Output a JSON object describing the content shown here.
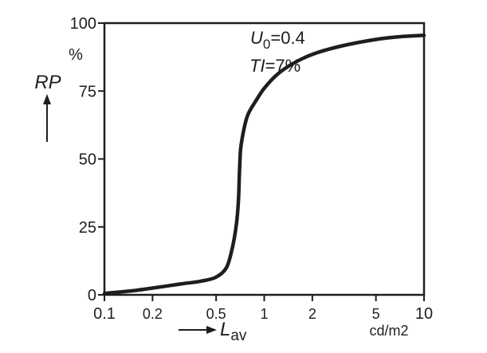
{
  "chart_data": {
    "type": "line",
    "x_scale": "log",
    "xlim": [
      0.1,
      10
    ],
    "ylim": [
      0,
      100
    ],
    "grid": false,
    "y_unit": "%",
    "x_unit": "cd/m2",
    "ylabel": "RP",
    "xlabel_main": "L",
    "xlabel_sub": "av",
    "y_ticks": [
      {
        "value": 0,
        "label": "0"
      },
      {
        "value": 25,
        "label": "25"
      },
      {
        "value": 50,
        "label": "50"
      },
      {
        "value": 75,
        "label": "75"
      },
      {
        "value": 100,
        "label": "100"
      }
    ],
    "x_ticks": [
      {
        "value": 0.1,
        "label": "0.1"
      },
      {
        "value": 0.2,
        "label": "0.2"
      },
      {
        "value": 0.5,
        "label": "0.5"
      },
      {
        "value": 1,
        "label": "1"
      },
      {
        "value": 2,
        "label": "2"
      },
      {
        "value": 5,
        "label": "5"
      },
      {
        "value": 10,
        "label": "10"
      }
    ],
    "annotations": {
      "u0_main": "U",
      "u0_sub": "0",
      "u0_value": "=0.4",
      "ti_main": "TI",
      "ti_value": "=7%"
    },
    "series": [
      {
        "x": [
          0.1,
          0.15,
          0.2,
          0.3,
          0.4,
          0.5,
          0.58,
          0.63,
          0.67,
          0.69,
          0.7,
          0.71,
          0.73,
          0.76,
          0.8,
          0.9,
          1.0,
          1.2,
          1.5,
          2.0,
          3.0,
          5.0,
          7.0,
          10.0
        ],
        "y": [
          0.5,
          1.5,
          2.5,
          4,
          5,
          6.5,
          10,
          17,
          26,
          35,
          45,
          53,
          58,
          63,
          67,
          72,
          76,
          81,
          85,
          88.5,
          91.5,
          94,
          95,
          95.5
        ]
      }
    ]
  }
}
